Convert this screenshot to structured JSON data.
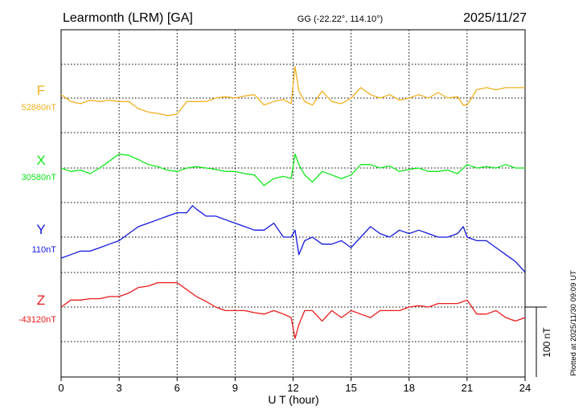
{
  "header": {
    "station": "Learmonth (LRM)  [GA]",
    "coords": "GG (-22.22°, 114.10°)",
    "date": "2025/11/27"
  },
  "side_note": "Plotted at 2025/11/30 09:09 UT",
  "scale_label": "100 nT",
  "chart_data": {
    "type": "line",
    "xlabel": "U T (hour)",
    "xlim": [
      0,
      24
    ],
    "xticks": [
      "0",
      "3",
      "6",
      "9",
      "12",
      "15",
      "18",
      "21",
      "24"
    ],
    "grid": true,
    "scale_nT": 100,
    "series": [
      {
        "name": "F",
        "baseline": "52860nT",
        "color": "#f2b01e",
        "x": [
          0,
          0.5,
          1,
          1.5,
          2,
          2.5,
          3,
          3.5,
          4,
          4.5,
          5,
          5.5,
          6,
          6.5,
          7,
          7.5,
          8,
          8.5,
          9,
          9.5,
          10,
          10.5,
          11,
          11.5,
          11.9,
          12.1,
          12.3,
          12.6,
          13,
          13.5,
          14,
          14.5,
          15,
          15.5,
          16,
          16.5,
          17,
          17.5,
          18,
          18.5,
          19,
          19.5,
          20,
          20.5,
          20.8,
          21,
          21.5,
          22,
          22.5,
          23,
          23.5,
          24
        ],
        "y": [
          5,
          -5,
          -8,
          -3,
          -5,
          -3,
          -5,
          -5,
          -15,
          -20,
          -22,
          -25,
          -23,
          -5,
          -5,
          -5,
          0,
          2,
          0,
          3,
          5,
          -10,
          -5,
          -2,
          -8,
          45,
          10,
          -5,
          -10,
          10,
          -5,
          -8,
          0,
          15,
          5,
          0,
          5,
          -3,
          0,
          5,
          0,
          8,
          0,
          2,
          -10,
          -10,
          12,
          15,
          12,
          15,
          15,
          15
        ]
      },
      {
        "name": "X",
        "baseline": "30580nT",
        "color": "#11e81a",
        "x": [
          0,
          0.5,
          1,
          1.5,
          2,
          2.5,
          3,
          3.5,
          4,
          4.5,
          5,
          5.5,
          6,
          6.5,
          7,
          7.5,
          8,
          8.5,
          9,
          9.5,
          10,
          10.5,
          11,
          11.5,
          11.9,
          12.1,
          12.3,
          12.6,
          13,
          13.5,
          14,
          14.5,
          15,
          15.5,
          16,
          16.5,
          17,
          17.5,
          18,
          18.5,
          19,
          19.5,
          20,
          20.5,
          21,
          21.5,
          22,
          22.5,
          23,
          23.5,
          24
        ],
        "y": [
          0,
          -5,
          -3,
          -8,
          0,
          10,
          20,
          18,
          12,
          5,
          2,
          -3,
          -5,
          0,
          2,
          0,
          -2,
          -5,
          -5,
          -8,
          -10,
          -25,
          -15,
          -12,
          -15,
          20,
          5,
          -10,
          -20,
          -5,
          -10,
          -15,
          -10,
          5,
          5,
          0,
          3,
          -5,
          -2,
          0,
          -5,
          -5,
          -3,
          -8,
          5,
          0,
          2,
          0,
          5,
          0,
          0
        ]
      },
      {
        "name": "Y",
        "baseline": "110nT",
        "color": "#1418dd",
        "x": [
          0,
          0.5,
          1,
          1.5,
          2,
          2.5,
          3,
          3.5,
          4,
          4.5,
          5,
          5.5,
          6,
          6.5,
          6.8,
          7,
          7.5,
          8,
          8.5,
          9,
          9.5,
          10,
          10.5,
          11,
          11.5,
          11.9,
          12.1,
          12.3,
          12.6,
          13,
          13.5,
          14,
          14.5,
          15,
          15.5,
          16,
          16.5,
          17,
          17.5,
          18,
          18.5,
          19,
          19.5,
          20,
          20.5,
          20.8,
          21,
          21.5,
          22,
          22.5,
          23,
          23.5,
          24
        ],
        "y": [
          -30,
          -25,
          -20,
          -20,
          -15,
          -10,
          -5,
          5,
          15,
          20,
          25,
          30,
          35,
          35,
          45,
          40,
          30,
          30,
          25,
          20,
          15,
          10,
          10,
          20,
          0,
          0,
          10,
          -25,
          -5,
          0,
          -10,
          -10,
          -5,
          -15,
          0,
          15,
          5,
          0,
          10,
          5,
          10,
          5,
          0,
          0,
          5,
          15,
          0,
          -5,
          -5,
          -15,
          -25,
          -35,
          -50
        ]
      },
      {
        "name": "Z",
        "baseline": "-43120nT",
        "color": "#ea1b1b",
        "x": [
          0,
          0.5,
          1,
          1.5,
          2,
          2.5,
          3,
          3.5,
          4,
          4.5,
          5,
          5.5,
          6,
          6.5,
          7,
          7.5,
          8,
          8.5,
          9,
          9.5,
          10,
          10.5,
          11,
          11.5,
          11.9,
          12.1,
          12.3,
          12.6,
          13,
          13.5,
          14,
          14.5,
          15,
          15.5,
          16,
          16.5,
          17,
          17.5,
          18,
          18.5,
          19,
          19.5,
          20,
          20.5,
          21,
          21.5,
          22,
          22.5,
          23,
          23.5,
          24
        ],
        "y": [
          0,
          10,
          10,
          12,
          12,
          15,
          15,
          20,
          28,
          30,
          35,
          35,
          35,
          25,
          15,
          8,
          0,
          -5,
          -5,
          -5,
          -8,
          -10,
          -5,
          -10,
          -15,
          -45,
          -25,
          -5,
          -5,
          -20,
          -5,
          -15,
          -5,
          -10,
          -15,
          -5,
          -5,
          -5,
          0,
          2,
          0,
          5,
          5,
          5,
          10,
          -10,
          -10,
          -5,
          -15,
          -20,
          -15
        ]
      }
    ]
  }
}
